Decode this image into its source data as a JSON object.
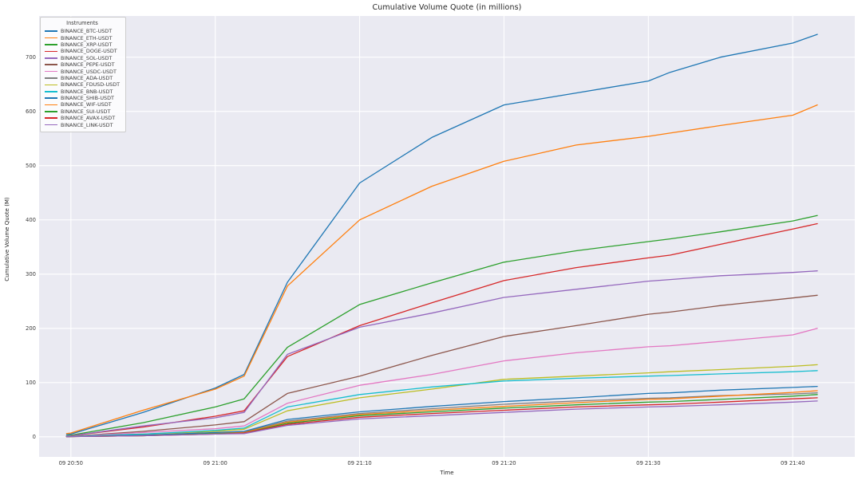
{
  "page": {
    "background": "#ffffff"
  },
  "chart_data": {
    "type": "line",
    "title": "Cumulative Volume Quote (in millions)",
    "xlabel": "Time",
    "ylabel": "Cumulative Volume Quote (M)",
    "legend_title": "Instruments",
    "legend_position": "upper-left",
    "grid": true,
    "plot_background": "#eaeaf2",
    "grid_color": "#ffffff",
    "x_unit": "minutes after 09 20:50",
    "x_domain": [
      -2.2,
      54.3
    ],
    "y_domain": [
      -37,
      776
    ],
    "y_ticks": [
      0,
      100,
      200,
      300,
      400,
      500,
      600,
      700
    ],
    "x_ticks": [
      {
        "t": 0,
        "label": "09 20:50"
      },
      {
        "t": 10,
        "label": "09 21:00"
      },
      {
        "t": 20,
        "label": "09 21:10"
      },
      {
        "t": 30,
        "label": "09 21:20"
      },
      {
        "t": 40,
        "label": "09 21:30"
      },
      {
        "t": 50,
        "label": "09 21:40"
      }
    ],
    "x": [
      -0.3,
      0,
      5,
      10,
      12,
      15,
      20,
      25,
      30,
      35,
      40,
      41.5,
      45,
      50,
      51.7
    ],
    "series": [
      {
        "name": "BINANCE_BTC-USDT",
        "color": "#1f77b4",
        "values": [
          4,
          5,
          45,
          90,
          115,
          285,
          468,
          552,
          612,
          634,
          656,
          672,
          700,
          726,
          742
        ]
      },
      {
        "name": "BINANCE_ETH-USDT",
        "color": "#ff7f0e",
        "values": [
          6,
          7,
          49,
          88,
          112,
          278,
          400,
          462,
          508,
          538,
          554,
          560,
          574,
          593,
          612
        ]
      },
      {
        "name": "BINANCE_XRP-USDT",
        "color": "#2ca02c",
        "values": [
          2,
          3,
          26,
          55,
          70,
          165,
          244,
          284,
          322,
          343,
          360,
          365,
          378,
          398,
          408
        ]
      },
      {
        "name": "BINANCE_DOGE-USDT",
        "color": "#d62728",
        "values": [
          1.5,
          2,
          18,
          38,
          48,
          148,
          205,
          247,
          288,
          312,
          330,
          335,
          355,
          383,
          393
        ]
      },
      {
        "name": "BINANCE_SOL-USDT",
        "color": "#9467bd",
        "values": [
          1.5,
          2,
          20,
          35,
          45,
          152,
          202,
          228,
          257,
          272,
          287,
          290,
          297,
          303,
          306
        ]
      },
      {
        "name": "BINANCE_PEPE-USDT",
        "color": "#8c564b",
        "values": [
          0.8,
          1,
          10,
          22,
          28,
          80,
          112,
          150,
          185,
          205,
          226,
          230,
          242,
          256,
          261
        ]
      },
      {
        "name": "BINANCE_USDC-USDT",
        "color": "#e377c2",
        "values": [
          0.8,
          1,
          8,
          15,
          20,
          62,
          95,
          115,
          140,
          155,
          166,
          168,
          176,
          188,
          200
        ]
      },
      {
        "name": "BINANCE_ADA-USDT",
        "color": "#7f7f7f",
        "values": [
          0.4,
          0.5,
          3,
          7,
          9,
          29,
          43,
          52,
          60,
          66,
          71,
          72,
          76,
          79,
          81
        ]
      },
      {
        "name": "BINANCE_FDUSD-USDT",
        "color": "#bcbd22",
        "values": [
          0.8,
          1,
          5,
          10,
          14,
          48,
          72,
          88,
          106,
          112,
          118,
          120,
          124,
          130,
          133
        ]
      },
      {
        "name": "BINANCE_BNB-USDT",
        "color": "#17becf",
        "values": [
          0.8,
          1,
          5,
          12,
          16,
          55,
          78,
          92,
          103,
          108,
          112,
          113,
          116,
          120,
          122
        ]
      },
      {
        "name": "BINANCE_SHIB-USDT",
        "color": "#1f77b4",
        "values": [
          0.4,
          0.5,
          3,
          8,
          10,
          32,
          46,
          56,
          65,
          72,
          80,
          81,
          86,
          91,
          93
        ]
      },
      {
        "name": "BINANCE_WIF-USDT",
        "color": "#ff7f0e",
        "values": [
          0.4,
          0.5,
          2,
          6,
          8,
          27,
          41,
          49,
          56,
          63,
          69,
          70,
          75,
          82,
          85
        ]
      },
      {
        "name": "BINANCE_SUI-USDT",
        "color": "#2ca02c",
        "values": [
          0.4,
          0.5,
          2,
          6,
          7,
          25,
          39,
          46,
          53,
          59,
          64,
          65,
          69,
          75,
          78
        ]
      },
      {
        "name": "BINANCE_AVAX-USDT",
        "color": "#d62728",
        "values": [
          0.4,
          0.5,
          2,
          5,
          7,
          23,
          36,
          43,
          49,
          55,
          59,
          60,
          64,
          70,
          72
        ]
      },
      {
        "name": "BINANCE_LINK-USDT",
        "color": "#9467bd",
        "values": [
          0.4,
          0.5,
          2,
          5,
          6,
          21,
          33,
          39,
          45,
          51,
          55,
          56,
          59,
          64,
          66
        ]
      }
    ]
  }
}
